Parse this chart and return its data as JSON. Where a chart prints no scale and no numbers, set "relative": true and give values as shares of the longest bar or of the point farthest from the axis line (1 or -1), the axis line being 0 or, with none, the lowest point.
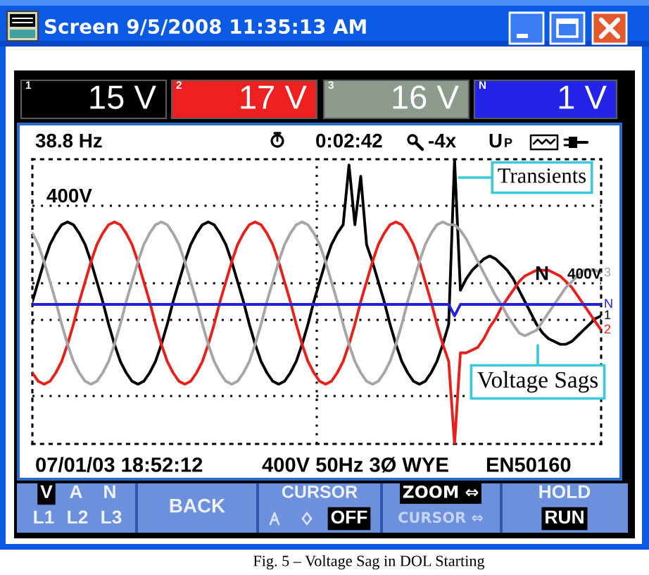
{
  "chart_data": {
    "type": "line",
    "title": "Screen 9/5/2008 11:35:13 AM",
    "categories": [
      null,
      null,
      null,
      null,
      null,
      null,
      null,
      null,
      null,
      null,
      null,
      null,
      null,
      null,
      null,
      null,
      null,
      null,
      null,
      null,
      null,
      null,
      null,
      null,
      null,
      null,
      null,
      null,
      null,
      null,
      null,
      null,
      null,
      null,
      null,
      null,
      null,
      null,
      null,
      null,
      null,
      null,
      null,
      null,
      null,
      null,
      null,
      null,
      null,
      null,
      null,
      null,
      null,
      null,
      null,
      null,
      null,
      null,
      null,
      null,
      null,
      null,
      null,
      null,
      null,
      null,
      null,
      null,
      null,
      null,
      null,
      null,
      null,
      null,
      null,
      null,
      null,
      null,
      null,
      null,
      null,
      null,
      null,
      null,
      null,
      null,
      null,
      null,
      null,
      null,
      null,
      null,
      null,
      null,
      null,
      null,
      null,
      null
    ],
    "relative": true,
    "grid": true,
    "series": [
      {
        "name": "1",
        "color": "#000000",
        "values": [
          0.5,
          0.57,
          0.64,
          0.7,
          0.74,
          0.77,
          0.78,
          0.77,
          0.74,
          0.7,
          0.64,
          0.57,
          0.5,
          0.42,
          0.35,
          0.29,
          0.25,
          0.22,
          0.21,
          0.22,
          0.25,
          0.29,
          0.35,
          0.42,
          0.5,
          0.57,
          0.64,
          0.7,
          0.74,
          0.77,
          0.78,
          0.77,
          0.74,
          0.7,
          0.64,
          0.57,
          0.5,
          0.42,
          0.35,
          0.29,
          0.25,
          0.22,
          0.21,
          0.22,
          0.25,
          0.29,
          0.35,
          0.42,
          0.5,
          0.57,
          0.64,
          0.7,
          0.74,
          0.77,
          0.98,
          0.77,
          0.94,
          0.7,
          0.64,
          0.57,
          0.5,
          0.42,
          0.35,
          0.29,
          0.25,
          0.22,
          0.21,
          0.22,
          0.25,
          0.29,
          0.35,
          0.42,
          1,
          0.54,
          0.58,
          0.61,
          0.63,
          0.65,
          0.66,
          0.65,
          0.63,
          0.61,
          0.58,
          0.54,
          0.5,
          0.46,
          0.42,
          0.39,
          0.37,
          0.36,
          0.35,
          0.35,
          0.36,
          0.38,
          0.4,
          0.42,
          0.44,
          0.45
        ]
      },
      {
        "name": "2",
        "color": "#e8201c",
        "values": [
          0.25,
          0.22,
          0.21,
          0.22,
          0.25,
          0.29,
          0.35,
          0.42,
          0.5,
          0.57,
          0.64,
          0.7,
          0.74,
          0.77,
          0.78,
          0.77,
          0.74,
          0.7,
          0.64,
          0.57,
          0.5,
          0.42,
          0.35,
          0.29,
          0.25,
          0.22,
          0.21,
          0.22,
          0.25,
          0.29,
          0.35,
          0.42,
          0.5,
          0.57,
          0.64,
          0.7,
          0.74,
          0.77,
          0.78,
          0.77,
          0.74,
          0.7,
          0.64,
          0.57,
          0.5,
          0.42,
          0.35,
          0.29,
          0.25,
          0.22,
          0.21,
          0.22,
          0.25,
          0.29,
          0.35,
          0.42,
          0.5,
          0.57,
          0.64,
          0.7,
          0.74,
          0.77,
          0.78,
          0.77,
          0.74,
          0.7,
          0.64,
          0.57,
          0.5,
          0.42,
          0.35,
          0.29,
          0,
          0.32,
          0.32,
          0.33,
          0.34,
          0.37,
          0.41,
          0.44,
          0.48,
          0.51,
          0.54,
          0.57,
          0.59,
          0.6,
          0.61,
          0.61,
          0.61,
          0.6,
          0.59,
          0.57,
          0.55,
          0.52,
          0.49,
          0.46,
          0.43,
          0.4
        ]
      },
      {
        "name": "3",
        "color": "#a6a6a6",
        "values": [
          0.74,
          0.7,
          0.64,
          0.57,
          0.5,
          0.42,
          0.35,
          0.29,
          0.25,
          0.22,
          0.21,
          0.22,
          0.25,
          0.29,
          0.35,
          0.42,
          0.5,
          0.57,
          0.64,
          0.7,
          0.74,
          0.77,
          0.78,
          0.77,
          0.74,
          0.7,
          0.64,
          0.57,
          0.5,
          0.42,
          0.35,
          0.29,
          0.25,
          0.22,
          0.21,
          0.22,
          0.25,
          0.29,
          0.35,
          0.42,
          0.5,
          0.57,
          0.64,
          0.7,
          0.74,
          0.77,
          0.78,
          0.77,
          0.74,
          0.7,
          0.64,
          0.57,
          0.5,
          0.42,
          0.35,
          0.29,
          0.25,
          0.22,
          0.21,
          0.22,
          0.25,
          0.29,
          0.35,
          0.42,
          0.5,
          0.57,
          0.64,
          0.7,
          0.74,
          0.77,
          0.78,
          0.77,
          0.77,
          0.75,
          0.72,
          0.68,
          0.64,
          0.6,
          0.56,
          0.52,
          0.49,
          0.45,
          0.42,
          0.39,
          0.38,
          0.39,
          0.4,
          0.43,
          0.46,
          0.49,
          0.52,
          0.55,
          0.57,
          0.59,
          0.61,
          0.61,
          0.61,
          0.6
        ]
      },
      {
        "name": "N",
        "color": "#2323d6",
        "values": [
          0.49,
          0.49,
          0.49,
          0.49,
          0.49,
          0.49,
          0.49,
          0.49,
          0.49,
          0.49,
          0.49,
          0.49,
          0.49,
          0.49,
          0.49,
          0.49,
          0.49,
          0.49,
          0.49,
          0.49,
          0.49,
          0.49,
          0.49,
          0.49,
          0.49,
          0.49,
          0.49,
          0.49,
          0.49,
          0.49,
          0.49,
          0.49,
          0.49,
          0.49,
          0.49,
          0.49,
          0.49,
          0.49,
          0.49,
          0.49,
          0.49,
          0.49,
          0.49,
          0.49,
          0.49,
          0.49,
          0.49,
          0.49,
          0.49,
          0.49,
          0.49,
          0.49,
          0.49,
          0.49,
          0.49,
          0.49,
          0.49,
          0.49,
          0.49,
          0.49,
          0.49,
          0.49,
          0.49,
          0.49,
          0.49,
          0.49,
          0.49,
          0.49,
          0.49,
          0.49,
          0.49,
          0.49,
          0.45,
          0.49,
          0.49,
          0.49,
          0.49,
          0.49,
          0.49,
          0.49,
          0.49,
          0.49,
          0.49,
          0.49,
          0.49,
          0.49,
          0.49,
          0.49,
          0.49,
          0.49,
          0.49,
          0.49,
          0.49,
          0.49,
          0.49,
          0.49,
          0.49,
          0.49
        ]
      }
    ],
    "annotations": [
      "15 V",
      "17 V",
      "16 V",
      "1 V",
      "38.8 Hz",
      "0:02:42",
      "-4x",
      "U",
      "P",
      "400V",
      "N",
      "400V",
      "Transients",
      "Voltage Sags",
      "07/01/03 18:52:12",
      "400V 50Hz 3Ø WYE",
      "EN50160",
      "V",
      "A",
      "N",
      "L1",
      "L2",
      "L3",
      "BACK",
      "CURSOR",
      "OFF",
      "ZOOM ⇔",
      "CURSOR ⇔",
      "HOLD",
      "RUN",
      "Fig. 5 – Voltage Sag in DOL Starting"
    ]
  }
}
